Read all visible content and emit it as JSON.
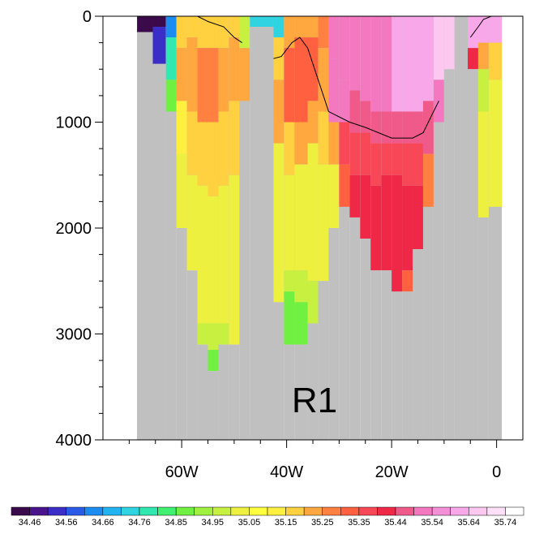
{
  "chart_data": {
    "type": "heatmap",
    "title": "",
    "region_label": "R1",
    "xlabel": "",
    "ylabel": "",
    "x_axis": {
      "units": "degrees longitude (negative = W)",
      "range": [
        -75,
        5
      ],
      "ticks": [
        {
          "value": -60,
          "label": "60W"
        },
        {
          "value": -40,
          "label": "40W"
        },
        {
          "value": -20,
          "label": "20W"
        },
        {
          "value": 0,
          "label": "0"
        }
      ]
    },
    "y_axis": {
      "units": "depth (m)",
      "reversed": true,
      "range": [
        0,
        4000
      ],
      "ticks": [
        {
          "value": 0,
          "label": "0"
        },
        {
          "value": 1000,
          "label": "1000"
        },
        {
          "value": 2000,
          "label": "2000"
        },
        {
          "value": 3000,
          "label": "3000"
        },
        {
          "value": 4000,
          "label": "4000"
        }
      ]
    },
    "colorbar": {
      "labels": [
        "34.46",
        "34.56",
        "34.66",
        "34.76",
        "34.85",
        "34.95",
        "35.05",
        "35.15",
        "35.25",
        "35.35",
        "35.44",
        "35.54",
        "35.64",
        "35.74"
      ],
      "colors": [
        "#3b0a4a",
        "#4a148c",
        "#3a2dc8",
        "#2a5ae8",
        "#1d8cf0",
        "#22b4f0",
        "#30d4e0",
        "#30e8b0",
        "#40f070",
        "#70f040",
        "#a0f040",
        "#c8f040",
        "#eef040",
        "#ffff40",
        "#fff040",
        "#ffd040",
        "#ffa840",
        "#ff8040",
        "#ff6040",
        "#f84858",
        "#f02848",
        "#f05a8a",
        "#f478c0",
        "#f490d8",
        "#f8a8e8",
        "#fcc8f0",
        "#ffe0f8",
        "#ffffff"
      ]
    },
    "missing_color": "#c0c0c0",
    "columns": [
      {
        "x": [
          -68.5,
          -65.5
        ],
        "bottom": 4000,
        "bands": [
          [
            0,
            150,
            "#3b0a4a"
          ],
          [
            150,
            4000,
            "#c0c0c0"
          ]
        ]
      },
      {
        "x": [
          -65.5,
          -63.0
        ],
        "bottom": 4000,
        "bands": [
          [
            0,
            100,
            "#3b0a4a"
          ],
          [
            100,
            450,
            "#3a2dc8"
          ],
          [
            450,
            4000,
            "#c0c0c0"
          ]
        ]
      },
      {
        "x": [
          -63.0,
          -61.0
        ],
        "bottom": 4000,
        "bands": [
          [
            0,
            200,
            "#1d8cf0"
          ],
          [
            200,
            600,
            "#30e8b0"
          ],
          [
            600,
            900,
            "#70f040"
          ],
          [
            900,
            4000,
            "#c0c0c0"
          ]
        ]
      },
      {
        "x": [
          -61.0,
          -59.0
        ],
        "bottom": 2000,
        "bands": [
          [
            0,
            300,
            "#ffd040"
          ],
          [
            300,
            800,
            "#ffa840"
          ],
          [
            800,
            1300,
            "#fff040"
          ],
          [
            1300,
            2000,
            "#eef040"
          ]
        ]
      },
      {
        "x": [
          -59.0,
          -57.0
        ],
        "bottom": 2400,
        "bands": [
          [
            0,
            200,
            "#ffd040"
          ],
          [
            200,
            900,
            "#ffa840"
          ],
          [
            900,
            1500,
            "#ffd040"
          ],
          [
            1500,
            2400,
            "#eef040"
          ]
        ]
      },
      {
        "x": [
          -57.0,
          -55.0
        ],
        "bottom": 3100,
        "bands": [
          [
            0,
            300,
            "#ffd040"
          ],
          [
            300,
            1000,
            "#ff8040"
          ],
          [
            1000,
            1600,
            "#ffd040"
          ],
          [
            1600,
            2900,
            "#eef040"
          ],
          [
            2900,
            3100,
            "#c8f040"
          ]
        ]
      },
      {
        "x": [
          -55.0,
          -53.0
        ],
        "bottom": 3350,
        "bands": [
          [
            0,
            300,
            "#ffd040"
          ],
          [
            300,
            1000,
            "#ff8040"
          ],
          [
            1000,
            1700,
            "#ffd040"
          ],
          [
            1700,
            2900,
            "#eef040"
          ],
          [
            2900,
            3150,
            "#c8f040"
          ],
          [
            3150,
            3350,
            "#70f040"
          ]
        ]
      },
      {
        "x": [
          -53.0,
          -51.0
        ],
        "bottom": 3100,
        "bands": [
          [
            0,
            300,
            "#ffd040"
          ],
          [
            300,
            900,
            "#ffa840"
          ],
          [
            900,
            1600,
            "#ffd040"
          ],
          [
            1600,
            2900,
            "#eef040"
          ],
          [
            2900,
            3100,
            "#c8f040"
          ]
        ]
      },
      {
        "x": [
          -51.0,
          -49.0
        ],
        "bottom": 3100,
        "bands": [
          [
            0,
            200,
            "#ffd040"
          ],
          [
            200,
            800,
            "#ffa840"
          ],
          [
            800,
            1500,
            "#ffd040"
          ],
          [
            1500,
            3100,
            "#eef040"
          ]
        ]
      },
      {
        "x": [
          -49.0,
          -47.0
        ],
        "bottom": 800,
        "bands": [
          [
            0,
            300,
            "#c8f040"
          ],
          [
            300,
            800,
            "#ffa840"
          ]
        ]
      },
      {
        "x": [
          -47.0,
          -42.5
        ],
        "bottom": 4000,
        "bands": [
          [
            0,
            100,
            "#30d4e0"
          ],
          [
            100,
            4000,
            "#c0c0c0"
          ]
        ]
      },
      {
        "x": [
          -42.5,
          -40.5
        ],
        "bottom": 2700,
        "bands": [
          [
            0,
            200,
            "#30d4e0"
          ],
          [
            200,
            600,
            "#ffd040"
          ],
          [
            600,
            1200,
            "#ffa840"
          ],
          [
            1200,
            2700,
            "#eef040"
          ]
        ]
      },
      {
        "x": [
          -40.5,
          -38.5
        ],
        "bottom": 3100,
        "bands": [
          [
            0,
            300,
            "#ffa840"
          ],
          [
            300,
            1000,
            "#ff6040"
          ],
          [
            1000,
            1500,
            "#ffd040"
          ],
          [
            1500,
            2400,
            "#eef040"
          ],
          [
            2400,
            2600,
            "#c8f040"
          ],
          [
            2600,
            3100,
            "#70f040"
          ]
        ]
      },
      {
        "x": [
          -38.5,
          -36.0
        ],
        "bottom": 3100,
        "bands": [
          [
            0,
            200,
            "#ffa840"
          ],
          [
            200,
            1000,
            "#ff6040"
          ],
          [
            1000,
            1400,
            "#ffa840"
          ],
          [
            1400,
            2400,
            "#eef040"
          ],
          [
            2400,
            2700,
            "#c8f040"
          ],
          [
            2700,
            3100,
            "#70f040"
          ]
        ]
      },
      {
        "x": [
          -36.0,
          -34.0
        ],
        "bottom": 2900,
        "bands": [
          [
            0,
            200,
            "#ffa840"
          ],
          [
            200,
            800,
            "#ff6040"
          ],
          [
            800,
            1200,
            "#ffa840"
          ],
          [
            1200,
            2500,
            "#eef040"
          ],
          [
            2500,
            2900,
            "#c8f040"
          ]
        ]
      },
      {
        "x": [
          -34.0,
          -32.0
        ],
        "bottom": 2500,
        "bands": [
          [
            0,
            300,
            "#ff8040"
          ],
          [
            300,
            900,
            "#ffa840"
          ],
          [
            900,
            1400,
            "#ffd040"
          ],
          [
            1400,
            2500,
            "#eef040"
          ]
        ]
      },
      {
        "x": [
          -32.0,
          -30.0
        ],
        "bottom": 2000,
        "bands": [
          [
            0,
            400,
            "#f478c0"
          ],
          [
            400,
            1000,
            "#f478c0"
          ],
          [
            1000,
            1400,
            "#ffa840"
          ],
          [
            1400,
            2000,
            "#eef040"
          ]
        ]
      },
      {
        "x": [
          -30.0,
          -28.0
        ],
        "bottom": 1800,
        "bands": [
          [
            0,
            600,
            "#f478c0"
          ],
          [
            600,
            1000,
            "#f478c0"
          ],
          [
            1000,
            1400,
            "#f84858"
          ],
          [
            1400,
            1800,
            "#ff6040"
          ]
        ]
      },
      {
        "x": [
          -28.0,
          -26.0
        ],
        "bottom": 1900,
        "bands": [
          [
            0,
            700,
            "#f478c0"
          ],
          [
            700,
            1100,
            "#f05a8a"
          ],
          [
            1100,
            1500,
            "#f84858"
          ],
          [
            1500,
            1900,
            "#f02848"
          ]
        ]
      },
      {
        "x": [
          -26.0,
          -24.0
        ],
        "bottom": 2100,
        "bands": [
          [
            0,
            800,
            "#f478c0"
          ],
          [
            800,
            1100,
            "#f05a8a"
          ],
          [
            1100,
            1500,
            "#f84858"
          ],
          [
            1500,
            2100,
            "#f02848"
          ]
        ]
      },
      {
        "x": [
          -24.0,
          -22.0
        ],
        "bottom": 2400,
        "bands": [
          [
            0,
            900,
            "#f478c0"
          ],
          [
            900,
            1200,
            "#f05a8a"
          ],
          [
            1200,
            1600,
            "#f84858"
          ],
          [
            1600,
            2400,
            "#f02848"
          ]
        ]
      },
      {
        "x": [
          -22.0,
          -20.0
        ],
        "bottom": 2400,
        "bands": [
          [
            0,
            900,
            "#f478c0"
          ],
          [
            900,
            1200,
            "#f05a8a"
          ],
          [
            1200,
            1500,
            "#f84858"
          ],
          [
            1500,
            2400,
            "#f02848"
          ]
        ]
      },
      {
        "x": [
          -20.0,
          -18.0
        ],
        "bottom": 2600,
        "bands": [
          [
            0,
            900,
            "#f8a8e8"
          ],
          [
            900,
            1200,
            "#f05a8a"
          ],
          [
            1200,
            1500,
            "#f84858"
          ],
          [
            1500,
            2600,
            "#f02848"
          ]
        ]
      },
      {
        "x": [
          -18.0,
          -16.0
        ],
        "bottom": 2600,
        "bands": [
          [
            0,
            900,
            "#f8a8e8"
          ],
          [
            900,
            1200,
            "#f05a8a"
          ],
          [
            1200,
            1600,
            "#f84858"
          ],
          [
            1600,
            2400,
            "#f02848"
          ],
          [
            2400,
            2600,
            "#ff6040"
          ]
        ]
      },
      {
        "x": [
          -16.0,
          -14.0
        ],
        "bottom": 2200,
        "bands": [
          [
            0,
            900,
            "#f8a8e8"
          ],
          [
            900,
            1200,
            "#f05a8a"
          ],
          [
            1200,
            1600,
            "#f84858"
          ],
          [
            1600,
            2200,
            "#f02848"
          ]
        ]
      },
      {
        "x": [
          -14.0,
          -12.0
        ],
        "bottom": 1800,
        "bands": [
          [
            0,
            800,
            "#f8a8e8"
          ],
          [
            800,
            1300,
            "#f05a8a"
          ],
          [
            1300,
            1800,
            "#ff8040"
          ]
        ]
      },
      {
        "x": [
          -12.0,
          -10.0
        ],
        "bottom": 1000,
        "bands": [
          [
            0,
            600,
            "#fcc8f0"
          ],
          [
            600,
            1000,
            "#f478c0"
          ]
        ]
      },
      {
        "x": [
          -10.0,
          -8.0
        ],
        "bottom": 500,
        "bands": [
          [
            0,
            500,
            "#fcc8f0"
          ]
        ]
      },
      {
        "x": [
          -8.0,
          -5.5
        ],
        "bottom": 4000,
        "bands": [
          [
            0,
            4000,
            "#c0c0c0"
          ]
        ]
      },
      {
        "x": [
          -5.5,
          -3.5
        ],
        "bottom": 500,
        "bands": [
          [
            0,
            300,
            "#f8a8e8"
          ],
          [
            300,
            500,
            "#f02848"
          ]
        ]
      },
      {
        "x": [
          -3.5,
          -1.5
        ],
        "bottom": 1900,
        "bands": [
          [
            0,
            250,
            "#f8a8e8"
          ],
          [
            250,
            500,
            "#ffa840"
          ],
          [
            500,
            900,
            "#c8f040"
          ],
          [
            900,
            1900,
            "#eef040"
          ]
        ]
      },
      {
        "x": [
          -1.5,
          1.0
        ],
        "bottom": 1800,
        "bands": [
          [
            0,
            250,
            "#f8a8e8"
          ],
          [
            250,
            600,
            "#ffd040"
          ],
          [
            600,
            1800,
            "#eef040"
          ]
        ]
      }
    ],
    "contours": [
      {
        "name": "",
        "points": [
          [
            -57.0,
            0
          ],
          [
            -55.0,
            50
          ],
          [
            -52.0,
            100
          ],
          [
            -50.0,
            200
          ],
          [
            -48.5,
            250
          ]
        ]
      },
      {
        "name": "",
        "points": [
          [
            -42.5,
            400
          ],
          [
            -41.0,
            380
          ],
          [
            -39.0,
            250
          ],
          [
            -37.5,
            200
          ],
          [
            -36.0,
            300
          ],
          [
            -34.0,
            600
          ],
          [
            -32.0,
            900
          ],
          [
            -30.0,
            950
          ],
          [
            -28.0,
            1000
          ],
          [
            -25.0,
            1050
          ],
          [
            -20.0,
            1150
          ],
          [
            -16.0,
            1150
          ],
          [
            -14.0,
            1100
          ],
          [
            -12.0,
            900
          ],
          [
            -11.0,
            800
          ]
        ]
      },
      {
        "name": "",
        "points": [
          [
            -5.0,
            200
          ],
          [
            -3.5,
            100
          ],
          [
            -2.5,
            30
          ],
          [
            -1.0,
            0
          ]
        ]
      }
    ]
  }
}
